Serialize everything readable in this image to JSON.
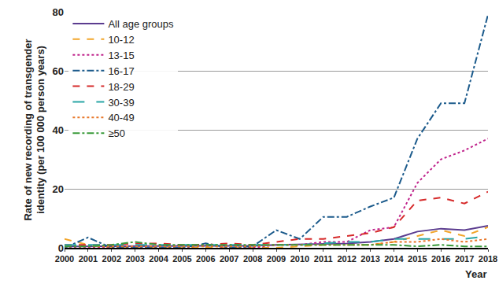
{
  "chart_data": {
    "type": "line",
    "x_label": "Year",
    "y_label": "Rate of new recording of transgender identity (per 100 000 person years)",
    "x": [
      2000,
      2001,
      2002,
      2003,
      2004,
      2005,
      2006,
      2007,
      2008,
      2009,
      2010,
      2011,
      2012,
      2013,
      2014,
      2015,
      2016,
      2017,
      2018
    ],
    "xlim": [
      2000,
      2018
    ],
    "xticks": [
      2000,
      2001,
      2002,
      2003,
      2004,
      2005,
      2006,
      2007,
      2008,
      2009,
      2010,
      2011,
      2012,
      2013,
      2014,
      2015,
      2016,
      2017,
      2018
    ],
    "ylim": [
      0,
      80
    ],
    "yticks": [
      0,
      20,
      40,
      60,
      80
    ],
    "grid": true,
    "legend": "top-left",
    "series": [
      {
        "name": "All age groups",
        "color": "#5b3c8f",
        "line_style": "solid",
        "values": [
          0.5,
          0.5,
          0.5,
          0.5,
          0.5,
          0.5,
          0.6,
          0.6,
          0.7,
          1,
          1.2,
          1.4,
          1.5,
          2,
          3,
          5.5,
          6.5,
          6,
          7.5
        ]
      },
      {
        "name": "10-12",
        "color": "#f2a52a",
        "line_style": "dash",
        "values": [
          3,
          1,
          0,
          0,
          0,
          0,
          0,
          0,
          0,
          0,
          0.5,
          1,
          1,
          1,
          2,
          4,
          6,
          4,
          7
        ]
      },
      {
        "name": "13-15",
        "color": "#c0248c",
        "line_style": "dot",
        "values": [
          0,
          0,
          0,
          0,
          0,
          0,
          1,
          0,
          0,
          1,
          1,
          2,
          2,
          6,
          7,
          22,
          30,
          33,
          37
        ]
      },
      {
        "name": "16-17",
        "color": "#1c5b8c",
        "line_style": "dashdot",
        "values": [
          0,
          3.5,
          0,
          0,
          0,
          0,
          1.5,
          0,
          0.5,
          6,
          3,
          10.5,
          10.5,
          14,
          17,
          37,
          49,
          49,
          79
        ]
      },
      {
        "name": "18-29",
        "color": "#d62a2a",
        "line_style": "dash",
        "values": [
          1,
          1,
          1,
          1.5,
          1.5,
          1,
          1,
          1.5,
          1,
          2,
          3,
          3,
          4,
          5,
          7,
          16,
          17,
          15,
          19
        ]
      },
      {
        "name": "30-39",
        "color": "#2aa6a6",
        "line_style": "longdash",
        "values": [
          1,
          1,
          1,
          1,
          1,
          1,
          1,
          1,
          1,
          1,
          1,
          1.5,
          2,
          2,
          3,
          3,
          3,
          3,
          4
        ]
      },
      {
        "name": "40-49",
        "color": "#e8772a",
        "line_style": "dot",
        "values": [
          0.5,
          0.5,
          0.5,
          0.5,
          0.5,
          0.5,
          0.5,
          0.5,
          0.5,
          1,
          1,
          1,
          1,
          1,
          2,
          2,
          3,
          2,
          3
        ]
      },
      {
        "name": "≥50",
        "color": "#3a9a3a",
        "line_style": "dashdot",
        "values": [
          0.5,
          0.5,
          1,
          2,
          1,
          1,
          1,
          1,
          1,
          1,
          1,
          1,
          1,
          1,
          1,
          0.5,
          1,
          0.5,
          0.5
        ]
      }
    ]
  }
}
